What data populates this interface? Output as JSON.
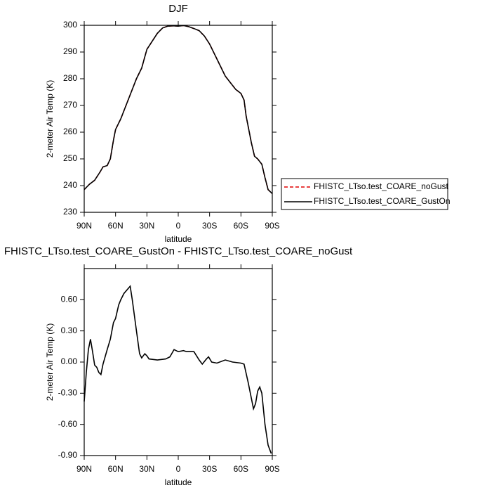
{
  "chart_data": [
    {
      "type": "line",
      "title": "DJF",
      "xlabel": "latitude",
      "ylabel": "2-meter Air Temp (K)",
      "x": [
        90,
        85,
        80,
        75,
        72,
        68,
        65,
        62,
        60,
        55,
        50,
        45,
        40,
        35,
        30,
        25,
        20,
        15,
        10,
        5,
        0,
        -5,
        -10,
        -15,
        -20,
        -25,
        -30,
        -35,
        -40,
        -45,
        -50,
        -55,
        -60,
        -63,
        -65,
        -70,
        -73,
        -76,
        -80,
        -83,
        -86,
        -90
      ],
      "series": [
        {
          "name": "FHISTC_LTso.test_COARE_noGust",
          "color": "#e00000",
          "dash": "dashed",
          "values": [
            238.5,
            240.5,
            242,
            245,
            247,
            247.5,
            250,
            257,
            261,
            265,
            270,
            275,
            280,
            284,
            291,
            294,
            297,
            299,
            299.7,
            299.8,
            299.7,
            299.9,
            299.5,
            298.8,
            298,
            296,
            293,
            289,
            285,
            281,
            278.5,
            276,
            274.5,
            272,
            266,
            256,
            251,
            250,
            248,
            243,
            238.5,
            237
          ]
        },
        {
          "name": "FHISTC_LTso.test_COARE_GustOn",
          "color": "#000000",
          "dash": "solid",
          "values": [
            238.5,
            240.5,
            242,
            245,
            247,
            247.5,
            250,
            257,
            261,
            265,
            270,
            275,
            280,
            284,
            291,
            294,
            297,
            299,
            299.7,
            299.8,
            299.7,
            299.9,
            299.5,
            298.8,
            298,
            296,
            293,
            289,
            285,
            281,
            278.5,
            276,
            274.5,
            272,
            266,
            256,
            251,
            250,
            248,
            243,
            238.5,
            237
          ]
        }
      ],
      "xlim": [
        90,
        -90
      ],
      "xticks": [
        {
          "value": 90,
          "label": "90N"
        },
        {
          "value": 60,
          "label": "60N"
        },
        {
          "value": 30,
          "label": "30N"
        },
        0,
        {
          "value": -30,
          "label": "30S"
        },
        {
          "value": -60,
          "label": "60S"
        },
        {
          "value": -90,
          "label": "90S"
        }
      ],
      "ylim": [
        230,
        300
      ],
      "yticks": [
        230,
        240,
        250,
        260,
        270,
        280,
        290,
        300
      ],
      "legend": "right"
    },
    {
      "type": "line",
      "title": "FHISTC_LTso.test_COARE_GustOn - FHISTC_LTso.test_COARE_noGust",
      "xlabel": "latitude",
      "ylabel": "2-meter Air Temp (K)",
      "x": [
        90,
        88,
        86,
        84,
        82,
        80,
        78,
        76,
        74,
        72,
        68,
        65,
        62,
        60,
        57,
        55,
        52,
        46,
        44,
        40,
        37,
        35,
        32,
        30,
        28,
        20,
        12,
        8,
        4,
        0,
        -5,
        -8,
        -12,
        -15,
        -20,
        -23,
        -27,
        -29,
        -32,
        -37,
        -45,
        -52,
        -60,
        -63,
        -67,
        -70,
        -72,
        -74,
        -76,
        -78,
        -80,
        -83,
        -86,
        -89
      ],
      "values": [
        -0.38,
        -0.1,
        0.12,
        0.22,
        0.1,
        -0.03,
        -0.05,
        -0.1,
        -0.12,
        -0.02,
        0.12,
        0.22,
        0.38,
        0.42,
        0.55,
        0.6,
        0.66,
        0.73,
        0.6,
        0.3,
        0.08,
        0.04,
        0.08,
        0.06,
        0.03,
        0.02,
        0.03,
        0.05,
        0.12,
        0.1,
        0.11,
        0.1,
        0.1,
        0.1,
        0.02,
        -0.02,
        0.03,
        0.05,
        0.0,
        -0.01,
        0.02,
        0.0,
        -0.01,
        -0.02,
        -0.2,
        -0.35,
        -0.45,
        -0.4,
        -0.28,
        -0.24,
        -0.3,
        -0.6,
        -0.8,
        -0.88
      ],
      "color": "#000000",
      "xlim": [
        90,
        -90
      ],
      "xticks": [
        {
          "value": 90,
          "label": "90N"
        },
        {
          "value": 60,
          "label": "60N"
        },
        {
          "value": 30,
          "label": "30N"
        },
        0,
        {
          "value": -30,
          "label": "30S"
        },
        {
          "value": -60,
          "label": "60S"
        },
        {
          "value": -90,
          "label": "90S"
        }
      ],
      "ylim": [
        -0.9,
        0.9
      ],
      "yticks": [
        {
          "value": -0.9,
          "label": "-0.90"
        },
        {
          "value": -0.6,
          "label": "-0.60"
        },
        {
          "value": -0.3,
          "label": "-0.30"
        },
        {
          "value": 0,
          "label": "0.00"
        },
        {
          "value": 0.3,
          "label": "0.30"
        },
        {
          "value": 0.6,
          "label": "0.60"
        }
      ]
    }
  ]
}
